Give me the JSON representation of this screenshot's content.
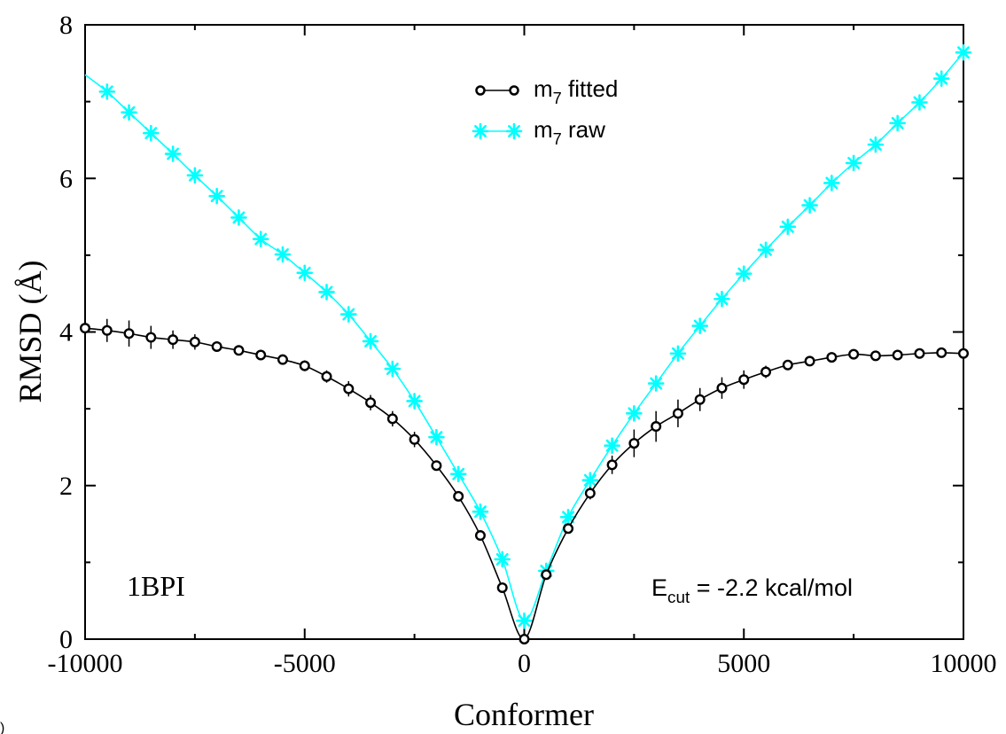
{
  "chart_data": {
    "type": "line",
    "xlabel": "Conformer",
    "ylabel": "RMSD (Å)",
    "xlim": [
      -10000,
      10000
    ],
    "ylim": [
      0,
      8
    ],
    "x_ticks": [
      -10000,
      -5000,
      0,
      5000,
      10000
    ],
    "y_ticks": [
      0,
      2,
      4,
      6,
      8
    ],
    "x_tick_labels": [
      "-10000",
      "-5000",
      "0",
      "5000",
      "10000"
    ],
    "y_tick_labels": [
      "0",
      "2",
      "4",
      "6",
      "8"
    ],
    "grid": false,
    "legend_position": "top-center",
    "series": [
      {
        "name_main": "m",
        "name_sub": "7",
        "name_rest": " fitted",
        "color": "#000000",
        "marker": "circle",
        "x": [
          -10000,
          -9500,
          -9000,
          -8500,
          -8000,
          -7500,
          -7000,
          -6500,
          -6000,
          -5500,
          -5000,
          -4500,
          -4000,
          -3500,
          -3000,
          -2500,
          -2000,
          -1500,
          -1000,
          -500,
          0,
          500,
          1000,
          1500,
          2000,
          2500,
          3000,
          3500,
          4000,
          4500,
          5000,
          5500,
          6000,
          6500,
          7000,
          7500,
          8000,
          8500,
          9000,
          9500,
          10000
        ],
        "y": [
          4.05,
          4.02,
          3.98,
          3.93,
          3.9,
          3.87,
          3.81,
          3.76,
          3.7,
          3.64,
          3.56,
          3.42,
          3.26,
          3.08,
          2.87,
          2.6,
          2.26,
          1.86,
          1.35,
          0.67,
          0.0,
          0.84,
          1.44,
          1.9,
          2.27,
          2.55,
          2.77,
          2.94,
          3.12,
          3.27,
          3.38,
          3.48,
          3.57,
          3.62,
          3.67,
          3.71,
          3.69,
          3.7,
          3.72,
          3.73,
          3.72
        ],
        "err": [
          0.12,
          0.15,
          0.17,
          0.15,
          0.12,
          0.1,
          0.06,
          0.05,
          0.06,
          0.06,
          0.07,
          0.08,
          0.1,
          0.1,
          0.1,
          0.1,
          0.06,
          0.05,
          0.04,
          0.03,
          0.0,
          0.04,
          0.06,
          0.08,
          0.12,
          0.18,
          0.2,
          0.18,
          0.15,
          0.14,
          0.12,
          0.08,
          0.06,
          0.05,
          0.03,
          0.03,
          0.03,
          0.03,
          0.03,
          0.03,
          0.03
        ]
      },
      {
        "name_main": "m",
        "name_sub": "7",
        "name_rest": " raw",
        "color": "#00ffff",
        "marker": "asterisk",
        "x": [
          -10000,
          -9500,
          -9000,
          -8500,
          -8000,
          -7500,
          -7000,
          -6500,
          -6000,
          -5500,
          -5000,
          -4500,
          -4000,
          -3500,
          -3000,
          -2500,
          -2000,
          -1500,
          -1000,
          -500,
          0,
          500,
          1000,
          1500,
          2000,
          2500,
          3000,
          3500,
          4000,
          4500,
          5000,
          5500,
          6000,
          6500,
          7000,
          7500,
          8000,
          8500,
          9000,
          9500,
          10000
        ],
        "y": [
          7.35,
          7.13,
          6.86,
          6.59,
          6.32,
          6.04,
          5.77,
          5.49,
          5.21,
          5.01,
          4.77,
          4.52,
          4.23,
          3.88,
          3.52,
          3.1,
          2.63,
          2.15,
          1.66,
          1.04,
          0.24,
          0.89,
          1.59,
          2.07,
          2.52,
          2.94,
          3.33,
          3.72,
          4.08,
          4.43,
          4.76,
          5.07,
          5.37,
          5.65,
          5.94,
          6.2,
          6.44,
          6.72,
          6.99,
          7.3,
          7.64
        ],
        "marker_x": [
          -9500,
          -9000,
          -8500,
          -8000,
          -7500,
          -7000,
          -6500,
          -6000,
          -5500,
          -5000,
          -4500,
          -4000,
          -3500,
          -3000,
          -2500,
          -2000,
          -1500,
          -1000,
          -500,
          0,
          500,
          1000,
          1500,
          2000,
          2500,
          3000,
          3500,
          4000,
          4500,
          5000,
          5500,
          6000,
          6500,
          7000,
          7500,
          8000,
          8500,
          9000,
          9500,
          10000
        ]
      }
    ],
    "annotations": {
      "protein": "1BPI",
      "ecut_main": "E",
      "ecut_sub": "cut",
      "ecut_rest": " = -2.2 kcal/mol"
    }
  },
  "corner_label": ")"
}
